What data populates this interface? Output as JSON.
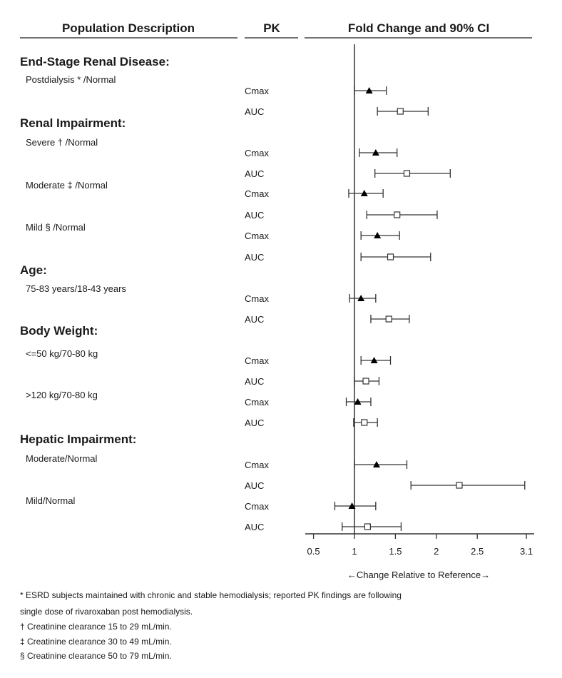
{
  "chart_data": {
    "type": "forest",
    "columns": [
      "Population Description",
      "PK",
      "Fold Change and 90% CI"
    ],
    "xlabel": "←Change Relative to Reference→",
    "xlim": [
      0.5,
      3.1
    ],
    "xticks": [
      "0.5",
      "1",
      "1.5",
      "2",
      "2.5",
      "3.1"
    ],
    "reference_line": 1,
    "marker_colors": {
      "Cmax": "#000000",
      "AUC": "#ffffff"
    },
    "groups": [
      {
        "title": "End-Stage Renal Disease:",
        "subgroups": [
          {
            "label": "Postdialysis * /Normal",
            "rows": [
              {
                "pk": "Cmax",
                "estimate": 1.18,
                "lower": 1.0,
                "upper": 1.39
              },
              {
                "pk": "AUC",
                "estimate": 1.56,
                "lower": 1.28,
                "upper": 1.9
              }
            ]
          }
        ]
      },
      {
        "title": "Renal Impairment:",
        "subgroups": [
          {
            "label": "Severe † /Normal",
            "rows": [
              {
                "pk": "Cmax",
                "estimate": 1.26,
                "lower": 1.06,
                "upper": 1.52
              },
              {
                "pk": "AUC",
                "estimate": 1.64,
                "lower": 1.25,
                "upper": 2.17
              }
            ]
          },
          {
            "label": "Moderate ‡ /Normal",
            "rows": [
              {
                "pk": "Cmax",
                "estimate": 1.12,
                "lower": 0.93,
                "upper": 1.35
              },
              {
                "pk": "AUC",
                "estimate": 1.52,
                "lower": 1.15,
                "upper": 2.01
              }
            ]
          },
          {
            "label": "Mild § /Normal",
            "rows": [
              {
                "pk": "Cmax",
                "estimate": 1.28,
                "lower": 1.08,
                "upper": 1.55
              },
              {
                "pk": "AUC",
                "estimate": 1.44,
                "lower": 1.08,
                "upper": 1.93
              }
            ]
          }
        ]
      },
      {
        "title": "Age:",
        "subgroups": [
          {
            "label": "75-83 years/18-43 years",
            "rows": [
              {
                "pk": "Cmax",
                "estimate": 1.08,
                "lower": 0.94,
                "upper": 1.26
              },
              {
                "pk": "AUC",
                "estimate": 1.42,
                "lower": 1.2,
                "upper": 1.67
              }
            ]
          }
        ]
      },
      {
        "title": "Body Weight:",
        "subgroups": [
          {
            "label": "<=50 kg/70-80 kg",
            "rows": [
              {
                "pk": "Cmax",
                "estimate": 1.24,
                "lower": 1.08,
                "upper": 1.44
              },
              {
                "pk": "AUC",
                "estimate": 1.14,
                "lower": 1.0,
                "upper": 1.3
              }
            ]
          },
          {
            "label": ">120 kg/70-80 kg",
            "rows": [
              {
                "pk": "Cmax",
                "estimate": 1.04,
                "lower": 0.9,
                "upper": 1.2
              },
              {
                "pk": "AUC",
                "estimate": 1.12,
                "lower": 0.99,
                "upper": 1.28
              }
            ]
          }
        ]
      },
      {
        "title": "Hepatic Impairment:",
        "subgroups": [
          {
            "label": "Moderate/Normal",
            "rows": [
              {
                "pk": "Cmax",
                "estimate": 1.27,
                "lower": 1.0,
                "upper": 1.64
              },
              {
                "pk": "AUC",
                "estimate": 2.28,
                "lower": 1.69,
                "upper": 3.08
              }
            ]
          },
          {
            "label": "Mild/Normal",
            "rows": [
              {
                "pk": "Cmax",
                "estimate": 0.97,
                "lower": 0.76,
                "upper": 1.26
              },
              {
                "pk": "AUC",
                "estimate": 1.16,
                "lower": 0.85,
                "upper": 1.57
              }
            ]
          }
        ]
      }
    ],
    "footnotes": [
      "* ESRD subjects maintained with chronic and stable hemodialysis; reported PK findings are following",
      "single dose of rivaroxaban post hemodialysis.",
      "† Creatinine clearance 15 to 29 mL/min.",
      "‡ Creatinine clearance 30 to 49 mL/min.",
      "§ Creatinine clearance 50 to 79 mL/min."
    ]
  }
}
